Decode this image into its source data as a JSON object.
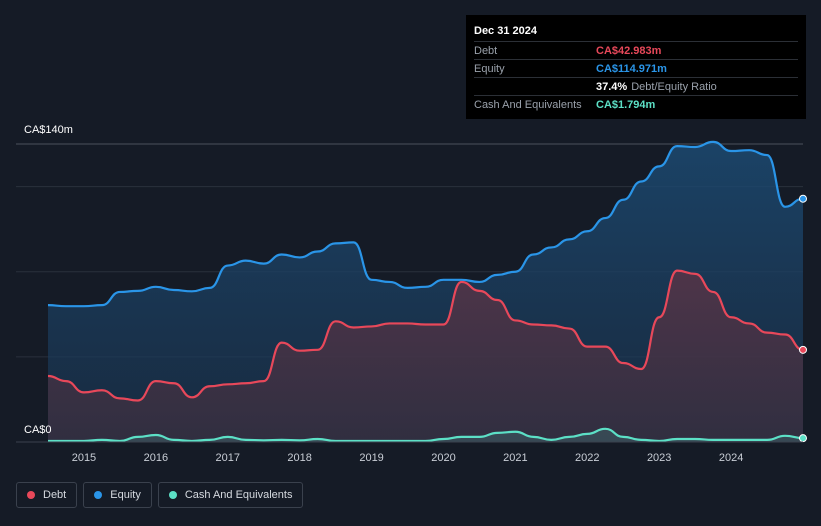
{
  "tooltip": {
    "date": "Dec 31 2024",
    "rows": [
      {
        "label": "Debt",
        "value": "CA$42.983m",
        "color": "#e8485a"
      },
      {
        "label": "Equity",
        "value": "CA$114.971m",
        "color": "#2a95e8"
      },
      {
        "label": "",
        "value": "37.4%",
        "suffix": "Debt/Equity Ratio"
      },
      {
        "label": "Cash And Equivalents",
        "value": "CA$1.794m",
        "color": "#5ce0c6"
      }
    ]
  },
  "legend": [
    {
      "label": "Debt",
      "color": "#e8485a"
    },
    {
      "label": "Equity",
      "color": "#2a95e8"
    },
    {
      "label": "Cash And Equivalents",
      "color": "#5ce0c6"
    }
  ],
  "chart_data": {
    "type": "area",
    "y_axis_top_label": "CA$140m",
    "y_axis_bottom_label": "CA$0",
    "ylim": [
      0,
      140
    ],
    "xlim": [
      2014.5,
      2025.0
    ],
    "x_ticks": [
      "2015",
      "2016",
      "2017",
      "2018",
      "2019",
      "2020",
      "2021",
      "2022",
      "2023",
      "2024"
    ],
    "grid": true,
    "series": [
      {
        "name": "Equity",
        "color": "#2a95e8",
        "points": [
          [
            2014.5,
            64.3
          ],
          [
            2014.75,
            63.8
          ],
          [
            2015.0,
            63.8
          ],
          [
            2015.25,
            64.3
          ],
          [
            2015.5,
            70.5
          ],
          [
            2015.75,
            71.0
          ],
          [
            2016.0,
            72.9
          ],
          [
            2016.25,
            71.4
          ],
          [
            2016.5,
            70.8
          ],
          [
            2016.75,
            72.4
          ],
          [
            2017.0,
            82.9
          ],
          [
            2017.25,
            85.2
          ],
          [
            2017.5,
            83.8
          ],
          [
            2017.75,
            88.1
          ],
          [
            2018.0,
            86.7
          ],
          [
            2018.25,
            89.5
          ],
          [
            2018.5,
            93.3
          ],
          [
            2018.75,
            93.8
          ],
          [
            2019.0,
            76.2
          ],
          [
            2019.25,
            75.2
          ],
          [
            2019.5,
            72.4
          ],
          [
            2019.75,
            72.9
          ],
          [
            2020.0,
            76.2
          ],
          [
            2020.25,
            76.2
          ],
          [
            2020.5,
            75.2
          ],
          [
            2020.75,
            78.5
          ],
          [
            2021.0,
            80.0
          ],
          [
            2021.25,
            88.1
          ],
          [
            2021.5,
            91.4
          ],
          [
            2021.75,
            95.2
          ],
          [
            2022.0,
            99.0
          ],
          [
            2022.25,
            105.2
          ],
          [
            2022.5,
            113.8
          ],
          [
            2022.75,
            122.4
          ],
          [
            2023.0,
            129.5
          ],
          [
            2023.25,
            139.0
          ],
          [
            2023.5,
            138.6
          ],
          [
            2023.75,
            141.0
          ],
          [
            2024.0,
            136.7
          ],
          [
            2024.25,
            137.1
          ],
          [
            2024.5,
            134.8
          ],
          [
            2024.75,
            110.5
          ],
          [
            2025.0,
            114.3
          ]
        ]
      },
      {
        "name": "Debt",
        "color": "#e8485a",
        "points": [
          [
            2014.5,
            31.0
          ],
          [
            2014.75,
            28.6
          ],
          [
            2015.0,
            23.3
          ],
          [
            2015.25,
            24.3
          ],
          [
            2015.5,
            20.5
          ],
          [
            2015.75,
            19.5
          ],
          [
            2016.0,
            28.6
          ],
          [
            2016.25,
            27.6
          ],
          [
            2016.5,
            21.0
          ],
          [
            2016.75,
            26.2
          ],
          [
            2017.0,
            27.1
          ],
          [
            2017.25,
            27.6
          ],
          [
            2017.5,
            28.6
          ],
          [
            2017.75,
            46.7
          ],
          [
            2018.0,
            42.9
          ],
          [
            2018.25,
            43.3
          ],
          [
            2018.5,
            56.7
          ],
          [
            2018.75,
            53.8
          ],
          [
            2019.0,
            54.3
          ],
          [
            2019.25,
            55.7
          ],
          [
            2019.5,
            55.7
          ],
          [
            2019.75,
            55.2
          ],
          [
            2020.0,
            55.2
          ],
          [
            2020.25,
            75.2
          ],
          [
            2020.5,
            71.0
          ],
          [
            2020.75,
            66.7
          ],
          [
            2021.0,
            57.1
          ],
          [
            2021.25,
            55.2
          ],
          [
            2021.5,
            54.8
          ],
          [
            2021.75,
            53.3
          ],
          [
            2022.0,
            44.8
          ],
          [
            2022.25,
            44.8
          ],
          [
            2022.5,
            37.1
          ],
          [
            2022.75,
            34.3
          ],
          [
            2023.0,
            58.6
          ],
          [
            2023.25,
            80.5
          ],
          [
            2023.5,
            79.0
          ],
          [
            2023.75,
            70.5
          ],
          [
            2024.0,
            58.6
          ],
          [
            2024.25,
            55.7
          ],
          [
            2024.5,
            51.4
          ],
          [
            2024.75,
            50.5
          ],
          [
            2025.0,
            43.3
          ]
        ]
      },
      {
        "name": "Cash And Equivalents",
        "color": "#5ce0c6",
        "points": [
          [
            2014.5,
            0.5
          ],
          [
            2014.75,
            0.5
          ],
          [
            2015.0,
            0.5
          ],
          [
            2015.25,
            1.0
          ],
          [
            2015.5,
            0.5
          ],
          [
            2015.75,
            2.4
          ],
          [
            2016.0,
            3.3
          ],
          [
            2016.25,
            1.0
          ],
          [
            2016.5,
            0.5
          ],
          [
            2016.75,
            1.0
          ],
          [
            2017.0,
            2.4
          ],
          [
            2017.25,
            1.0
          ],
          [
            2017.5,
            0.8
          ],
          [
            2017.75,
            1.0
          ],
          [
            2018.0,
            0.8
          ],
          [
            2018.25,
            1.4
          ],
          [
            2018.5,
            0.5
          ],
          [
            2018.75,
            0.5
          ],
          [
            2019.0,
            0.5
          ],
          [
            2019.25,
            0.5
          ],
          [
            2019.5,
            0.5
          ],
          [
            2019.75,
            0.5
          ],
          [
            2020.0,
            1.4
          ],
          [
            2020.25,
            2.4
          ],
          [
            2020.5,
            2.4
          ],
          [
            2020.75,
            4.3
          ],
          [
            2021.0,
            4.8
          ],
          [
            2021.25,
            2.4
          ],
          [
            2021.5,
            1.0
          ],
          [
            2021.75,
            2.4
          ],
          [
            2022.0,
            3.8
          ],
          [
            2022.25,
            6.2
          ],
          [
            2022.5,
            2.4
          ],
          [
            2022.75,
            1.0
          ],
          [
            2023.0,
            0.5
          ],
          [
            2023.25,
            1.4
          ],
          [
            2023.5,
            1.4
          ],
          [
            2023.75,
            1.0
          ],
          [
            2024.0,
            1.0
          ],
          [
            2024.25,
            1.0
          ],
          [
            2024.5,
            1.0
          ],
          [
            2024.75,
            2.9
          ],
          [
            2025.0,
            1.8
          ]
        ]
      }
    ]
  }
}
